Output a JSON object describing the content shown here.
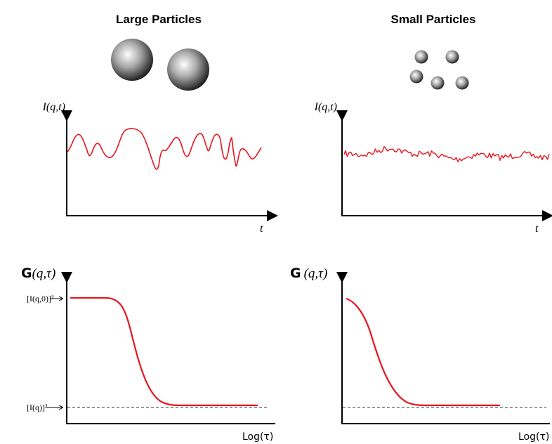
{
  "panels": [
    {
      "title": "Large Particles",
      "intensity": {
        "y_label": "I(q,t)",
        "x_label": "t"
      },
      "correlation": {
        "y_label_symbol": "G",
        "y_label_args": "(q,τ)",
        "x_label": "Log(τ)",
        "start_label": "[I(q,0)]²",
        "baseline_label": "[I(q)]²"
      }
    },
    {
      "title": "Small Particles",
      "intensity": {
        "y_label": "I(q,t)",
        "x_label": "t"
      },
      "correlation": {
        "y_label_symbol": "G",
        "y_label_args": "(q,τ)",
        "x_label": "Log(τ)"
      }
    }
  ]
}
